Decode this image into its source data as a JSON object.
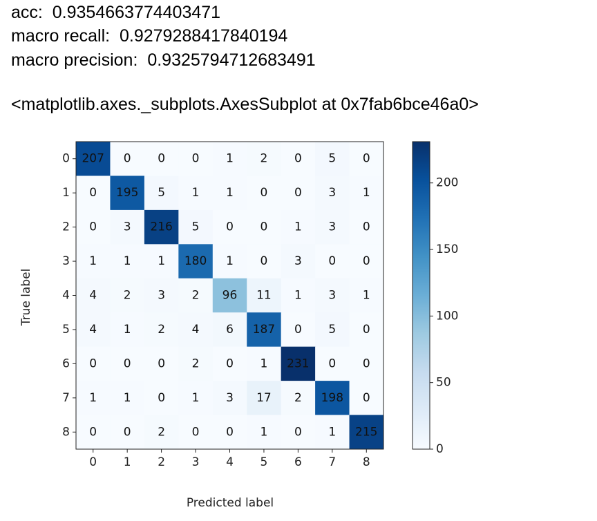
{
  "output_lines": [
    {
      "label": "acc:",
      "value": 0.9354663774403471
    },
    {
      "label": "macro recall:",
      "value": 0.9279288417840194
    },
    {
      "label": "macro precision:",
      "value": 0.9325794712683491
    }
  ],
  "repr": "<matplotlib.axes._subplots.AxesSubplot at 0x7fab6bce46a0>",
  "chart_data": {
    "type": "heatmap",
    "x_categories": [
      "0",
      "1",
      "2",
      "3",
      "4",
      "5",
      "6",
      "7",
      "8"
    ],
    "y_categories": [
      "0",
      "1",
      "2",
      "3",
      "4",
      "5",
      "6",
      "7",
      "8"
    ],
    "xlabel": "Predicted label",
    "ylabel": "True label",
    "values": [
      [
        207,
        0,
        0,
        0,
        1,
        2,
        0,
        5,
        0
      ],
      [
        0,
        195,
        5,
        1,
        1,
        0,
        0,
        3,
        1
      ],
      [
        0,
        3,
        216,
        5,
        0,
        0,
        1,
        3,
        0
      ],
      [
        1,
        1,
        1,
        180,
        1,
        0,
        3,
        0,
        0
      ],
      [
        4,
        2,
        3,
        2,
        96,
        11,
        1,
        3,
        1
      ],
      [
        4,
        1,
        2,
        4,
        6,
        187,
        0,
        5,
        0
      ],
      [
        0,
        0,
        0,
        2,
        0,
        1,
        231,
        0,
        0
      ],
      [
        1,
        1,
        0,
        1,
        3,
        17,
        2,
        198,
        0
      ],
      [
        0,
        0,
        2,
        0,
        0,
        1,
        0,
        1,
        215
      ]
    ],
    "colormap": "Blues",
    "clim": [
      0,
      231
    ],
    "colorbar_ticks": [
      0,
      50,
      100,
      150,
      200
    ]
  }
}
